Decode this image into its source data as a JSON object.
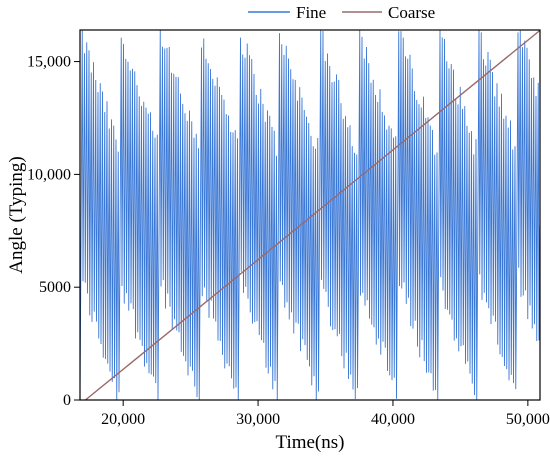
{
  "chart_data": {
    "type": "line",
    "title": "",
    "xlabel": "Time(ns)",
    "ylabel": "Angle (Typing)",
    "xlim": [
      16800,
      50900
    ],
    "ylim": [
      0,
      16400
    ],
    "xticks": [
      20000,
      30000,
      40000,
      50000
    ],
    "xtick_labels": [
      "20,000",
      "30,000",
      "40,000",
      "50,000"
    ],
    "yticks": [
      0,
      5000,
      10000,
      15000
    ],
    "ytick_labels": [
      "0",
      "5000",
      "10,000",
      "15,000"
    ],
    "grid": false,
    "legend_position": "top-right",
    "series": [
      {
        "name": "Fine",
        "color": "#3b78d6",
        "style": "dense sawtooth ramp 0–16383, period ≈170 ns, sampled coarsely",
        "range": [
          0,
          16383
        ],
        "period_ns": 170,
        "x_start": 16800,
        "x_end": 50900
      },
      {
        "name": "Coarse",
        "color": "#9a6a6a",
        "style": "linear ramp",
        "x": [
          17200,
          50900
        ],
        "y": [
          0,
          16383
        ]
      }
    ]
  }
}
